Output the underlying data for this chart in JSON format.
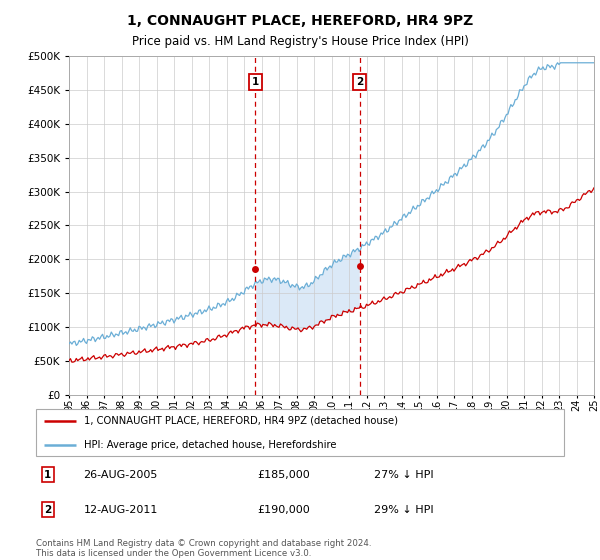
{
  "title": "1, CONNAUGHT PLACE, HEREFORD, HR4 9PZ",
  "subtitle": "Price paid vs. HM Land Registry's House Price Index (HPI)",
  "transaction1_year": 2005.65,
  "transaction1_price": 185000,
  "transaction2_year": 2011.62,
  "transaction2_price": 190000,
  "sale1_label": "26-AUG-2005",
  "sale1_price": "£185,000",
  "sale1_hpi": "27% ↓ HPI",
  "sale2_label": "12-AUG-2011",
  "sale2_price": "£190,000",
  "sale2_hpi": "29% ↓ HPI",
  "legend_label1": "1, CONNAUGHT PLACE, HEREFORD, HR4 9PZ (detached house)",
  "legend_label2": "HPI: Average price, detached house, Herefordshire",
  "footnote": "Contains HM Land Registry data © Crown copyright and database right 2024.\nThis data is licensed under the Open Government Licence v3.0.",
  "hpi_color": "#6baed6",
  "price_paid_color": "#cc0000",
  "shade_color": "#cce0f5",
  "vline_color": "#cc0000",
  "bg_color": "#ffffff",
  "grid_color": "#cccccc",
  "ylim": [
    0,
    500000
  ],
  "yticks": [
    0,
    50000,
    100000,
    150000,
    200000,
    250000,
    300000,
    350000,
    400000,
    450000,
    500000
  ],
  "xlim_start": 1995,
  "xlim_end": 2025
}
